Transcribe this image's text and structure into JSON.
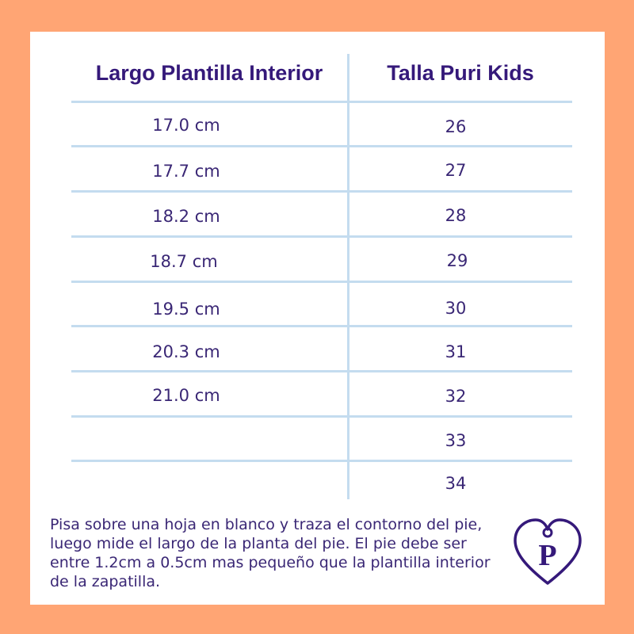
{
  "table": {
    "headers": [
      "Largo Plantilla Interior",
      "Talla Puri Kids"
    ],
    "rows": [
      [
        "17.0 cm",
        "26"
      ],
      [
        "17.7 cm",
        "27"
      ],
      [
        "18.2 cm",
        "28"
      ],
      [
        "18.7 cm",
        "29"
      ],
      [
        "19.5 cm",
        "30"
      ],
      [
        "20.3 cm",
        "31"
      ],
      [
        "21.0 cm",
        "32"
      ],
      [
        "",
        "33"
      ],
      [
        "",
        "34"
      ]
    ]
  },
  "note": "Pisa sobre una hoja en blanco y traza el contorno del pie, luego mide el largo de la planta del pie. El pie debe ser entre 1.2cm a 0.5cm mas pequeño que la plantilla interior de la zapatilla.",
  "logo": {
    "letter": "P",
    "icon": "heart-p-logo"
  },
  "colors": {
    "background": "#ffa574",
    "card": "#ffffff",
    "text": "#3a2775",
    "header": "#35197a",
    "rule": "#c4dcef"
  }
}
